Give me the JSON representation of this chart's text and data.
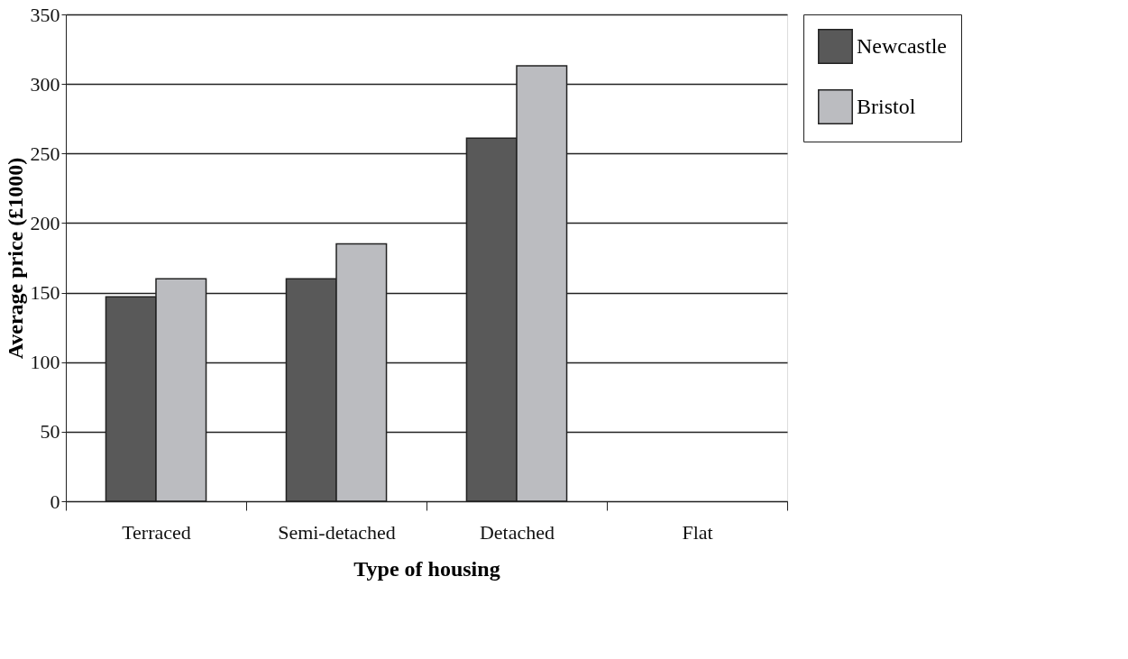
{
  "chart_data": {
    "type": "bar",
    "xlabel": "Type of housing",
    "ylabel": "Average price (£1000)",
    "categories": [
      "Terraced",
      "Semi-detached",
      "Detached",
      "Flat"
    ],
    "series": [
      {
        "name": "Newcastle",
        "color": "#595959",
        "values": [
          147,
          160,
          261,
          null
        ]
      },
      {
        "name": "Bristol",
        "color": "#bbbcc0",
        "values": [
          160,
          185,
          313,
          null
        ]
      }
    ],
    "ylim": [
      0,
      350
    ],
    "yticks": [
      0,
      50,
      100,
      150,
      200,
      250,
      300,
      350
    ],
    "grid": "y",
    "legend": "right"
  }
}
